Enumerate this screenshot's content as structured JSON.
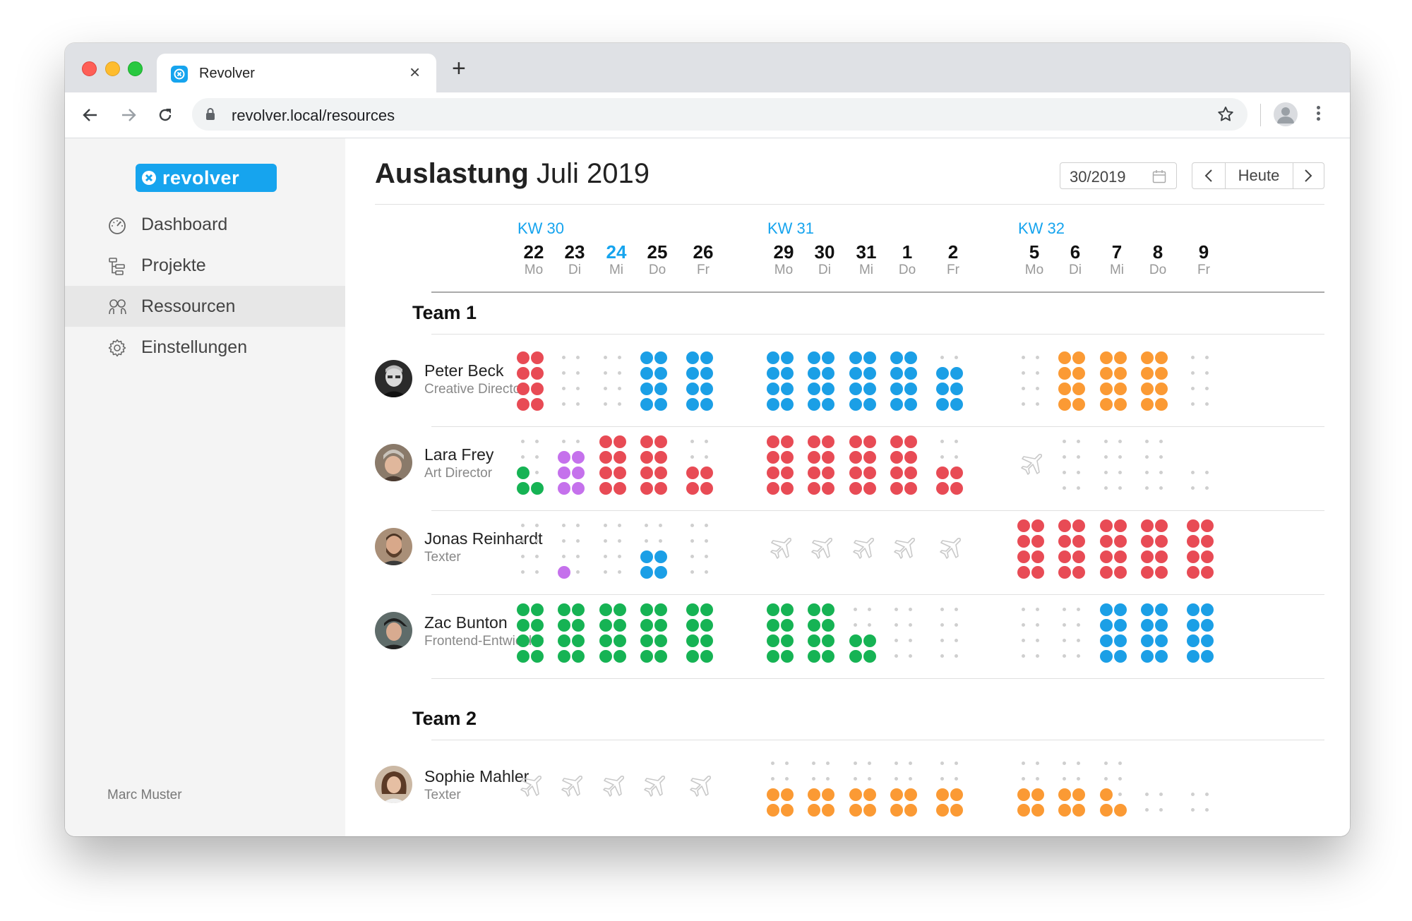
{
  "browser": {
    "tab_title": "Revolver",
    "url": "revolver.local/resources"
  },
  "app": {
    "logo_text": "revolver",
    "brand_color": "#16a4ee",
    "nav": [
      {
        "label": "Dashboard",
        "icon": "speedometer-icon"
      },
      {
        "label": "Projekte",
        "icon": "project-tree-icon"
      },
      {
        "label": "Ressourcen",
        "icon": "people-icon"
      },
      {
        "label": "Einstellungen",
        "icon": "gear-icon"
      }
    ],
    "active_nav": "Ressourcen",
    "user": "Marc Muster"
  },
  "header": {
    "title_bold": "Auslastung",
    "title_month": "Juli 2019",
    "week_value": "30/2019",
    "today_label": "Heute"
  },
  "colors": {
    "red": "#e84b55",
    "green": "#16b354",
    "blue": "#1b9fe6",
    "orange": "#fb9a34",
    "purple": "#c571ec",
    "empty": "#cfcfcf"
  },
  "weeks": [
    {
      "label": "KW 30",
      "days": [
        {
          "num": "22",
          "wd": "Mo"
        },
        {
          "num": "23",
          "wd": "Di"
        },
        {
          "num": "24",
          "wd": "Mi",
          "today": true
        },
        {
          "num": "25",
          "wd": "Do"
        },
        {
          "num": "26",
          "wd": "Fr"
        }
      ]
    },
    {
      "label": "KW 31",
      "days": [
        {
          "num": "29",
          "wd": "Mo"
        },
        {
          "num": "30",
          "wd": "Di"
        },
        {
          "num": "31",
          "wd": "Mi"
        },
        {
          "num": "1",
          "wd": "Do"
        },
        {
          "num": "2",
          "wd": "Fr"
        }
      ]
    },
    {
      "label": "KW 32",
      "days": [
        {
          "num": "5",
          "wd": "Mo"
        },
        {
          "num": "6",
          "wd": "Di"
        },
        {
          "num": "7",
          "wd": "Mi"
        },
        {
          "num": "8",
          "wd": "Do"
        },
        {
          "num": "9",
          "wd": "Fr"
        }
      ]
    }
  ],
  "teams": [
    {
      "name": "Team 1",
      "people": [
        {
          "name": "Peter Beck",
          "role": "Creative Director",
          "avatar": "avatar-bw",
          "days": [
            "r8",
            "e",
            "e",
            "b8",
            "b8",
            "b8",
            "b8",
            "b8",
            "b8",
            "b6",
            "e",
            "o8",
            "o8",
            "o8",
            "e"
          ]
        },
        {
          "name": "Lara Frey",
          "role": "Art Director",
          "avatar": "avatar-warm",
          "days": [
            "g3",
            "p6",
            "r8",
            "r8",
            "r4",
            "r8",
            "r8",
            "r8",
            "r8",
            "r4",
            "plane",
            "e",
            "e",
            "e",
            "e4"
          ]
        },
        {
          "name": "Jonas Reinhardt",
          "role": "Texter",
          "avatar": "avatar-beard",
          "days": [
            "e",
            "p1",
            "e",
            "b4",
            "e",
            "plane",
            "plane",
            "plane",
            "plane",
            "plane",
            "r8",
            "r8",
            "r8",
            "r8",
            "r8"
          ]
        },
        {
          "name": "Zac Bunton",
          "role": "Frontend-Entwickler",
          "avatar": "avatar-cap",
          "days": [
            "g8",
            "g8",
            "g8",
            "g8",
            "g8",
            "g8",
            "g8",
            "g4",
            "e",
            "e",
            "e",
            "e",
            "b8",
            "b8",
            "b8"
          ]
        }
      ]
    },
    {
      "name": "Team 2",
      "people": [
        {
          "name": "Sophie Mahler",
          "role": "Texter",
          "avatar": "avatar-sophie",
          "days": [
            "plane",
            "plane",
            "plane",
            "plane",
            "plane",
            "o4",
            "o4",
            "o4",
            "o4",
            "o4",
            "o4",
            "o4",
            "o3",
            "e4",
            "e4"
          ]
        }
      ]
    }
  ]
}
